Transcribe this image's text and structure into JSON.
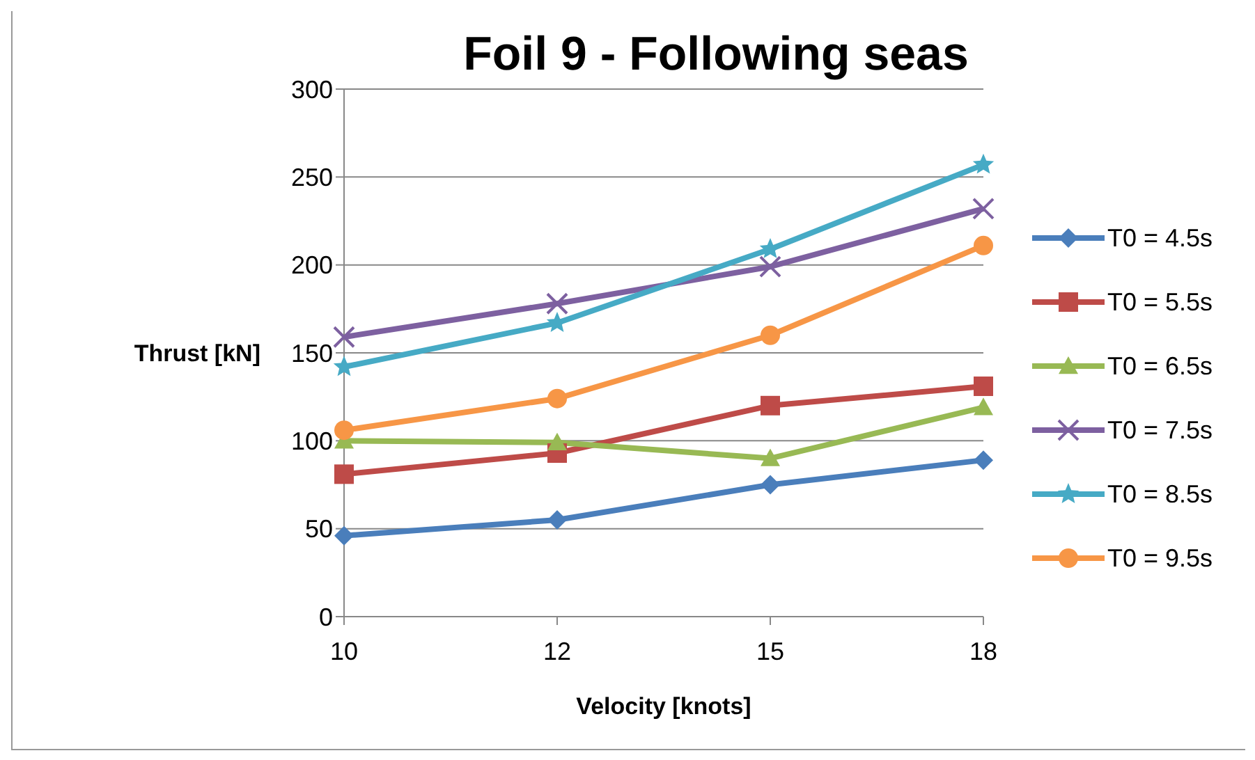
{
  "chart_data": {
    "type": "line",
    "title": "Foil 9 - Following seas",
    "xlabel": "Velocity [knots]",
    "ylabel": "Thrust [kN]",
    "categories": [
      "10",
      "12",
      "15",
      "18"
    ],
    "series": [
      {
        "name": "T0 = 4.5s",
        "color": "#4a7ebb",
        "marker": "diamond",
        "values": [
          46,
          55,
          75,
          89
        ]
      },
      {
        "name": "T0 = 5.5s",
        "color": "#be4b48",
        "marker": "square",
        "values": [
          81,
          93,
          120,
          131
        ]
      },
      {
        "name": "T0 = 6.5s",
        "color": "#98b954",
        "marker": "triangle",
        "values": [
          100,
          99,
          90,
          119
        ]
      },
      {
        "name": "T0 = 7.5s",
        "color": "#7d60a0",
        "marker": "cross",
        "values": [
          159,
          178,
          199,
          232
        ]
      },
      {
        "name": "T0 = 8.5s",
        "color": "#46aac5",
        "marker": "star",
        "values": [
          142,
          167,
          209,
          257
        ]
      },
      {
        "name": "T0 = 9.5s",
        "color": "#f79646",
        "marker": "circle",
        "values": [
          106,
          124,
          160,
          211
        ]
      }
    ],
    "ylim": [
      0,
      300
    ],
    "yticks": [
      0,
      50,
      100,
      150,
      200,
      250,
      300
    ],
    "grid": "y",
    "legend": "right",
    "line_style": "solid"
  }
}
